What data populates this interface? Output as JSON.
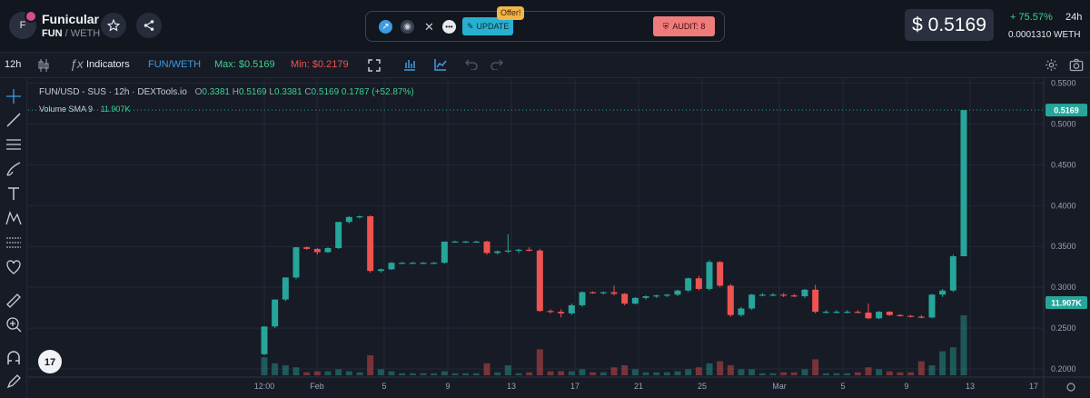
{
  "header": {
    "token_initial": "F",
    "token_name": "Funicular",
    "base": "FUN",
    "separator": " / ",
    "quote": "WETH",
    "update_label": "UPDATE",
    "offer_label": "Offer!",
    "audit_label": "AUDIT: 8",
    "price": "$ 0.5169",
    "change": "+ 75.57%",
    "period": "24h",
    "weth_price": "0.0001310  WETH"
  },
  "toolbar": {
    "timeframe": "12h",
    "indicators_label": "Indicators",
    "pair_label": "FUN/WETH",
    "max_label": "Max: $0.5169",
    "min_label": "Min: $0.2179"
  },
  "legend": {
    "symbol": "FUN/USD - SUS · 12h · DEXTools.io",
    "o_label": "O",
    "o": "0.3381",
    "h_label": "H",
    "h": "0.5169",
    "l_label": "L",
    "l": "0.3381",
    "c_label": "C",
    "c": "0.5169",
    "chg": "0.1787 (+52.87%)",
    "volume_label": "Volume SMA 9",
    "volume_value": "11.907K"
  },
  "colors": {
    "up": "#26a69a",
    "down": "#ef5350",
    "background": "#171b26",
    "accent": "#3ecf8e"
  },
  "chart_data": {
    "type": "candlestick",
    "y_ticks": [
      "0.5500",
      "0.5000",
      "0.4500",
      "0.4000",
      "0.3500",
      "0.3000",
      "0.2500",
      "0.2000"
    ],
    "ylim": [
      0.19,
      0.555
    ],
    "x_ticks": [
      "12:00",
      "Feb",
      "5",
      "9",
      "13",
      "17",
      "21",
      "25",
      "Mar",
      "5",
      "9",
      "13",
      "17"
    ],
    "last_price_label": "0.5169",
    "volume_label": "11.907K",
    "candles": [
      {
        "o": 0.218,
        "h": 0.252,
        "l": 0.217,
        "c": 0.252,
        "v": 0.9
      },
      {
        "o": 0.252,
        "h": 0.285,
        "l": 0.25,
        "c": 0.285,
        "v": 0.6
      },
      {
        "o": 0.285,
        "h": 0.312,
        "l": 0.283,
        "c": 0.312,
        "v": 0.5
      },
      {
        "o": 0.312,
        "h": 0.349,
        "l": 0.31,
        "c": 0.349,
        "v": 0.4
      },
      {
        "o": 0.349,
        "h": 0.35,
        "l": 0.346,
        "c": 0.347,
        "v": 0.15
      },
      {
        "o": 0.347,
        "h": 0.348,
        "l": 0.34,
        "c": 0.343,
        "v": 0.2
      },
      {
        "o": 0.343,
        "h": 0.349,
        "l": 0.342,
        "c": 0.348,
        "v": 0.2
      },
      {
        "o": 0.348,
        "h": 0.38,
        "l": 0.347,
        "c": 0.38,
        "v": 0.3
      },
      {
        "o": 0.38,
        "h": 0.387,
        "l": 0.378,
        "c": 0.386,
        "v": 0.2
      },
      {
        "o": 0.386,
        "h": 0.388,
        "l": 0.384,
        "c": 0.387,
        "v": 0.15
      },
      {
        "o": 0.387,
        "h": 0.388,
        "l": 0.318,
        "c": 0.32,
        "v": 1.0
      },
      {
        "o": 0.32,
        "h": 0.323,
        "l": 0.318,
        "c": 0.322,
        "v": 0.3
      },
      {
        "o": 0.322,
        "h": 0.331,
        "l": 0.321,
        "c": 0.33,
        "v": 0.2
      },
      {
        "o": 0.33,
        "h": 0.331,
        "l": 0.329,
        "c": 0.33,
        "v": 0.1
      },
      {
        "o": 0.33,
        "h": 0.331,
        "l": 0.329,
        "c": 0.33,
        "v": 0.1
      },
      {
        "o": 0.33,
        "h": 0.331,
        "l": 0.329,
        "c": 0.33,
        "v": 0.1
      },
      {
        "o": 0.33,
        "h": 0.331,
        "l": 0.329,
        "c": 0.33,
        "v": 0.1
      },
      {
        "o": 0.33,
        "h": 0.356,
        "l": 0.329,
        "c": 0.356,
        "v": 0.2
      },
      {
        "o": 0.356,
        "h": 0.357,
        "l": 0.355,
        "c": 0.356,
        "v": 0.1
      },
      {
        "o": 0.356,
        "h": 0.357,
        "l": 0.355,
        "c": 0.356,
        "v": 0.1
      },
      {
        "o": 0.356,
        "h": 0.357,
        "l": 0.355,
        "c": 0.356,
        "v": 0.1
      },
      {
        "o": 0.356,
        "h": 0.357,
        "l": 0.34,
        "c": 0.342,
        "v": 0.6
      },
      {
        "o": 0.342,
        "h": 0.345,
        "l": 0.34,
        "c": 0.344,
        "v": 0.15
      },
      {
        "o": 0.344,
        "h": 0.365,
        "l": 0.342,
        "c": 0.345,
        "v": 0.5
      },
      {
        "o": 0.345,
        "h": 0.347,
        "l": 0.342,
        "c": 0.346,
        "v": 0.1
      },
      {
        "o": 0.346,
        "h": 0.349,
        "l": 0.344,
        "c": 0.345,
        "v": 0.15
      },
      {
        "o": 0.345,
        "h": 0.347,
        "l": 0.27,
        "c": 0.271,
        "v": 1.3
      },
      {
        "o": 0.271,
        "h": 0.273,
        "l": 0.268,
        "c": 0.27,
        "v": 0.2
      },
      {
        "o": 0.27,
        "h": 0.273,
        "l": 0.263,
        "c": 0.268,
        "v": 0.2
      },
      {
        "o": 0.268,
        "h": 0.28,
        "l": 0.266,
        "c": 0.278,
        "v": 0.2
      },
      {
        "o": 0.278,
        "h": 0.295,
        "l": 0.276,
        "c": 0.294,
        "v": 0.3
      },
      {
        "o": 0.294,
        "h": 0.295,
        "l": 0.292,
        "c": 0.293,
        "v": 0.15
      },
      {
        "o": 0.293,
        "h": 0.295,
        "l": 0.291,
        "c": 0.294,
        "v": 0.15
      },
      {
        "o": 0.294,
        "h": 0.302,
        "l": 0.29,
        "c": 0.292,
        "v": 0.4
      },
      {
        "o": 0.292,
        "h": 0.293,
        "l": 0.278,
        "c": 0.28,
        "v": 0.5
      },
      {
        "o": 0.28,
        "h": 0.288,
        "l": 0.279,
        "c": 0.287,
        "v": 0.3
      },
      {
        "o": 0.287,
        "h": 0.29,
        "l": 0.285,
        "c": 0.289,
        "v": 0.15
      },
      {
        "o": 0.289,
        "h": 0.291,
        "l": 0.287,
        "c": 0.29,
        "v": 0.15
      },
      {
        "o": 0.29,
        "h": 0.292,
        "l": 0.288,
        "c": 0.291,
        "v": 0.15
      },
      {
        "o": 0.291,
        "h": 0.297,
        "l": 0.289,
        "c": 0.296,
        "v": 0.2
      },
      {
        "o": 0.296,
        "h": 0.312,
        "l": 0.294,
        "c": 0.311,
        "v": 0.3
      },
      {
        "o": 0.311,
        "h": 0.314,
        "l": 0.296,
        "c": 0.298,
        "v": 0.4
      },
      {
        "o": 0.298,
        "h": 0.333,
        "l": 0.296,
        "c": 0.331,
        "v": 0.6
      },
      {
        "o": 0.331,
        "h": 0.332,
        "l": 0.3,
        "c": 0.302,
        "v": 0.7
      },
      {
        "o": 0.302,
        "h": 0.304,
        "l": 0.264,
        "c": 0.266,
        "v": 0.5
      },
      {
        "o": 0.266,
        "h": 0.276,
        "l": 0.264,
        "c": 0.274,
        "v": 0.3
      },
      {
        "o": 0.274,
        "h": 0.292,
        "l": 0.272,
        "c": 0.291,
        "v": 0.3
      },
      {
        "o": 0.291,
        "h": 0.293,
        "l": 0.289,
        "c": 0.291,
        "v": 0.1
      },
      {
        "o": 0.291,
        "h": 0.293,
        "l": 0.289,
        "c": 0.291,
        "v": 0.1
      },
      {
        "o": 0.291,
        "h": 0.293,
        "l": 0.288,
        "c": 0.29,
        "v": 0.15
      },
      {
        "o": 0.29,
        "h": 0.292,
        "l": 0.288,
        "c": 0.289,
        "v": 0.15
      },
      {
        "o": 0.289,
        "h": 0.298,
        "l": 0.287,
        "c": 0.297,
        "v": 0.3
      },
      {
        "o": 0.297,
        "h": 0.303,
        "l": 0.268,
        "c": 0.27,
        "v": 0.8
      },
      {
        "o": 0.27,
        "h": 0.272,
        "l": 0.268,
        "c": 0.27,
        "v": 0.1
      },
      {
        "o": 0.27,
        "h": 0.272,
        "l": 0.268,
        "c": 0.27,
        "v": 0.1
      },
      {
        "o": 0.27,
        "h": 0.272,
        "l": 0.268,
        "c": 0.27,
        "v": 0.1
      },
      {
        "o": 0.27,
        "h": 0.272,
        "l": 0.268,
        "c": 0.269,
        "v": 0.15
      },
      {
        "o": 0.269,
        "h": 0.28,
        "l": 0.261,
        "c": 0.262,
        "v": 0.4
      },
      {
        "o": 0.262,
        "h": 0.271,
        "l": 0.261,
        "c": 0.27,
        "v": 0.3
      },
      {
        "o": 0.27,
        "h": 0.271,
        "l": 0.265,
        "c": 0.266,
        "v": 0.2
      },
      {
        "o": 0.266,
        "h": 0.267,
        "l": 0.264,
        "c": 0.265,
        "v": 0.15
      },
      {
        "o": 0.265,
        "h": 0.266,
        "l": 0.263,
        "c": 0.264,
        "v": 0.15
      },
      {
        "o": 0.264,
        "h": 0.266,
        "l": 0.262,
        "c": 0.263,
        "v": 0.7
      },
      {
        "o": 0.263,
        "h": 0.292,
        "l": 0.262,
        "c": 0.291,
        "v": 0.5
      },
      {
        "o": 0.291,
        "h": 0.298,
        "l": 0.288,
        "c": 0.296,
        "v": 1.2
      },
      {
        "o": 0.296,
        "h": 0.34,
        "l": 0.294,
        "c": 0.338,
        "v": 1.4
      },
      {
        "o": 0.338,
        "h": 0.517,
        "l": 0.338,
        "c": 0.517,
        "v": 3.0
      }
    ]
  }
}
